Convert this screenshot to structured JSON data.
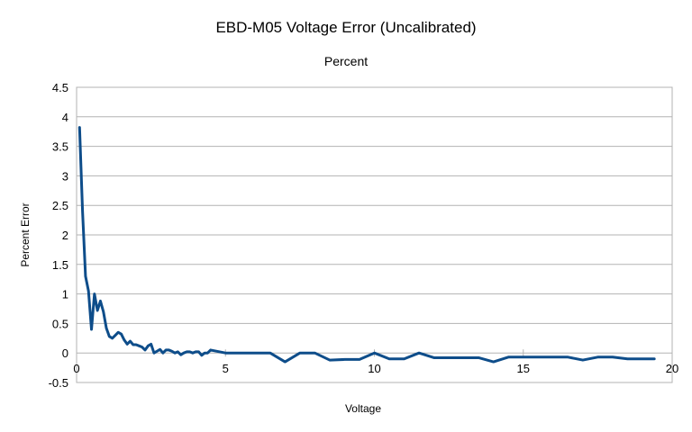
{
  "chart_data": {
    "type": "line",
    "title": "EBD-M05 Voltage Error (Uncalibrated)",
    "subtitle": "Percent",
    "xlabel": "Voltage",
    "ylabel": "Percent Error",
    "xlim": [
      0,
      20
    ],
    "ylim": [
      -0.5,
      4.5
    ],
    "xticks": [
      0,
      5,
      10,
      15,
      20
    ],
    "yticks": [
      -0.5,
      0,
      0.5,
      1,
      1.5,
      2,
      2.5,
      3,
      3.5,
      4,
      4.5
    ],
    "grid": true,
    "legend": "none",
    "series": [
      {
        "color": "#0e4d8a",
        "x": [
          0.1,
          0.2,
          0.3,
          0.4,
          0.5,
          0.6,
          0.7,
          0.8,
          0.9,
          1.0,
          1.1,
          1.2,
          1.3,
          1.4,
          1.5,
          1.6,
          1.7,
          1.8,
          1.9,
          2.0,
          2.1,
          2.2,
          2.3,
          2.4,
          2.5,
          2.6,
          2.7,
          2.8,
          2.9,
          3.0,
          3.1,
          3.2,
          3.3,
          3.4,
          3.5,
          3.6,
          3.7,
          3.8,
          3.9,
          4.0,
          4.1,
          4.2,
          4.3,
          4.4,
          4.5,
          5.0,
          5.5,
          6.0,
          6.5,
          7.0,
          7.5,
          8.0,
          8.5,
          9.0,
          9.5,
          10.0,
          10.5,
          11.0,
          11.5,
          12.0,
          12.5,
          13.0,
          13.5,
          14.0,
          14.5,
          15.0,
          15.5,
          16.0,
          16.5,
          17.0,
          17.5,
          18.0,
          18.5,
          19.0,
          19.4
        ],
        "y": [
          3.82,
          2.4,
          1.3,
          1.05,
          0.4,
          1.0,
          0.72,
          0.88,
          0.7,
          0.42,
          0.28,
          0.25,
          0.3,
          0.35,
          0.32,
          0.22,
          0.15,
          0.2,
          0.14,
          0.14,
          0.12,
          0.1,
          0.05,
          0.12,
          0.15,
          0.0,
          0.03,
          0.06,
          0.0,
          0.05,
          0.05,
          0.03,
          0.0,
          0.02,
          -0.03,
          0.0,
          0.02,
          0.02,
          0.0,
          0.02,
          0.02,
          -0.04,
          0.0,
          0.0,
          0.05,
          0.0,
          0.0,
          0.0,
          0.0,
          -0.15,
          0.0,
          0.0,
          -0.12,
          -0.11,
          -0.11,
          0.0,
          -0.1,
          -0.1,
          0.0,
          -0.08,
          -0.08,
          -0.08,
          -0.08,
          -0.15,
          -0.07,
          -0.07,
          -0.07,
          -0.07,
          -0.07,
          -0.12,
          -0.07,
          -0.07,
          -0.1,
          -0.1,
          -0.1
        ]
      }
    ]
  }
}
